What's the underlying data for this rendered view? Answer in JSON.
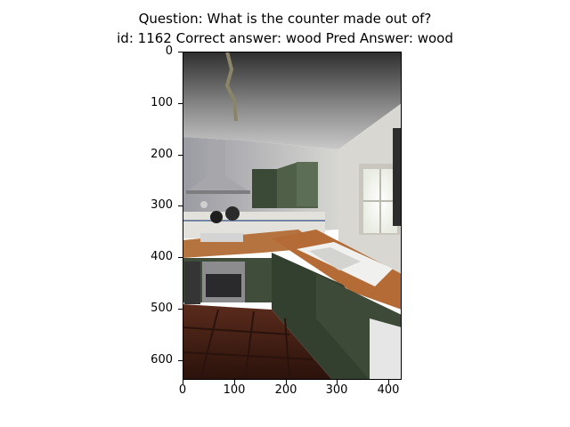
{
  "figure": {
    "title_line1": "Question: What is the counter made out of?",
    "title_line2": "id: 1162 Correct answer: wood Pred Answer: wood"
  },
  "image_axes": {
    "y_ticks": [
      "0",
      "100",
      "200",
      "300",
      "400",
      "500",
      "600"
    ],
    "x_ticks": [
      "0",
      "100",
      "200",
      "300",
      "400"
    ],
    "xlim": [
      0,
      425
    ],
    "ylim": [
      640,
      0
    ]
  },
  "photo": {
    "subject": "kitchen-photo",
    "colors": {
      "ceiling": "#bdbdbd",
      "wall": "#d9d9d6",
      "cabinet": "#3f4d3a",
      "counter": "#b06a37",
      "floor": "#4a2418",
      "window": "#f4f7f2"
    }
  }
}
